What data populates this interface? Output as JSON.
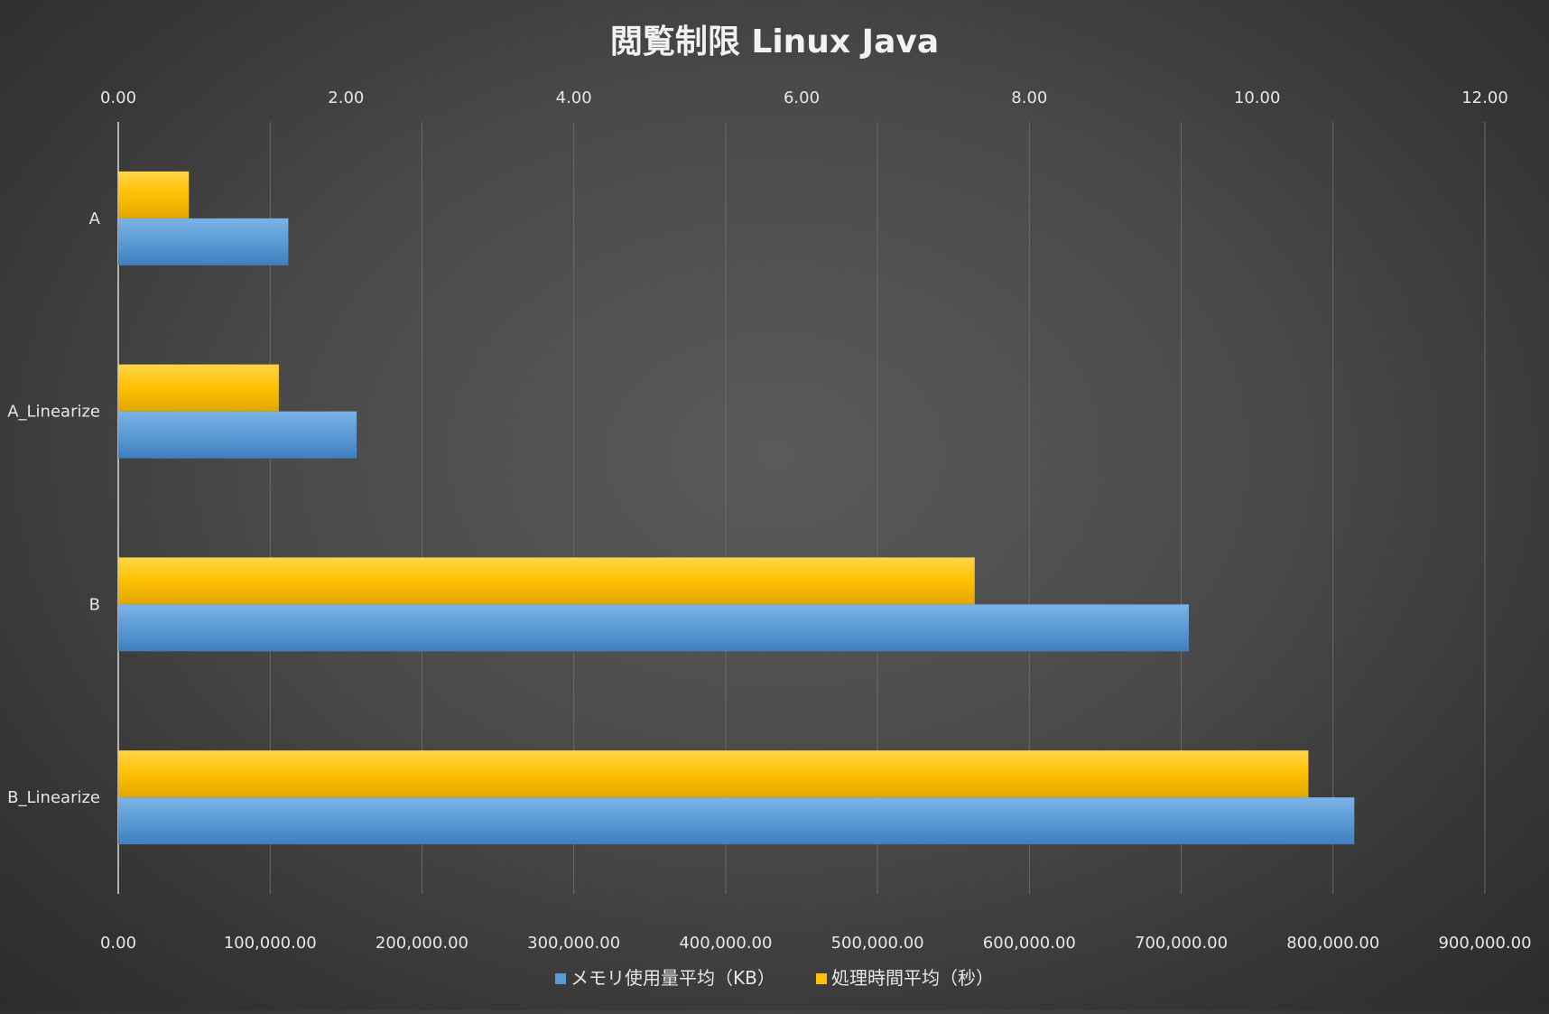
{
  "chart_data": {
    "type": "bar",
    "orientation": "horizontal",
    "title": "閲覧制限 Linux Java",
    "categories": [
      "A",
      "A_Linearize",
      "B",
      "B_Linearize"
    ],
    "series": [
      {
        "name": "メモリ使用量平均（KB）",
        "axis": "bottom",
        "color": "#5b9bd5",
        "values": [
          112000,
          157000,
          705000,
          814000
        ]
      },
      {
        "name": "処理時間平均（秒）",
        "axis": "top",
        "color": "#ffc000",
        "values": [
          0.62,
          1.41,
          7.52,
          10.45
        ]
      }
    ],
    "x_axis_bottom": {
      "range": [
        0,
        900000
      ],
      "ticks": [
        "0.00",
        "100,000.00",
        "200,000.00",
        "300,000.00",
        "400,000.00",
        "500,000.00",
        "600,000.00",
        "700,000.00",
        "800,000.00",
        "900,000.00"
      ]
    },
    "x_axis_top": {
      "range": [
        0,
        12
      ],
      "ticks": [
        "0.00",
        "2.00",
        "4.00",
        "6.00",
        "8.00",
        "10.00",
        "12.00"
      ]
    },
    "grid": true,
    "legend_position": "bottom"
  }
}
